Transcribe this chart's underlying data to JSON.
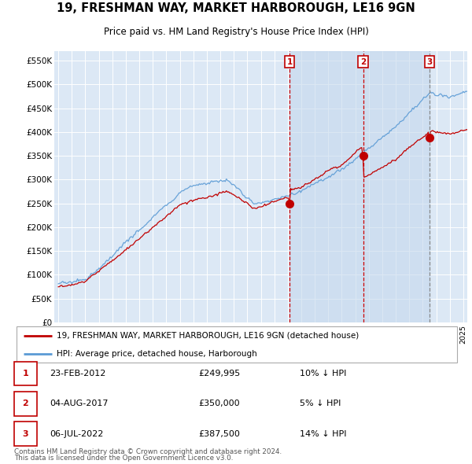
{
  "title": "19, FRESHMAN WAY, MARKET HARBOROUGH, LE16 9GN",
  "subtitle": "Price paid vs. HM Land Registry's House Price Index (HPI)",
  "ylabel_ticks": [
    "£0",
    "£50K",
    "£100K",
    "£150K",
    "£200K",
    "£250K",
    "£300K",
    "£350K",
    "£400K",
    "£450K",
    "£500K",
    "£550K"
  ],
  "ytick_values": [
    0,
    50000,
    100000,
    150000,
    200000,
    250000,
    300000,
    350000,
    400000,
    450000,
    500000,
    550000
  ],
  "ylim": [
    0,
    570000
  ],
  "hpi_color": "#5b9bd5",
  "price_color": "#c00000",
  "sales": [
    {
      "date": "23-FEB-2012",
      "price": 249995,
      "label": "1",
      "pct": "10% ↓ HPI",
      "x": 2012.13,
      "vline_color": "#cc0000",
      "vline_style": "--"
    },
    {
      "date": "04-AUG-2017",
      "price": 350000,
      "label": "2",
      "pct": "5% ↓ HPI",
      "x": 2017.59,
      "vline_color": "#cc0000",
      "vline_style": "--"
    },
    {
      "date": "06-JUL-2022",
      "price": 387500,
      "label": "3",
      "pct": "14% ↓ HPI",
      "x": 2022.51,
      "vline_color": "#888888",
      "vline_style": "--"
    }
  ],
  "shade_x1": 2012.13,
  "shade_x2": 2022.51,
  "legend_line1": "19, FRESHMAN WAY, MARKET HARBOROUGH, LE16 9GN (detached house)",
  "legend_line2": "HPI: Average price, detached house, Harborough",
  "footer1": "Contains HM Land Registry data © Crown copyright and database right 2024.",
  "footer2": "This data is licensed under the Open Government Licence v3.0.",
  "plot_bg": "#dce8f5",
  "shade_color": "#c5d8ed",
  "xlim_left": 1994.7,
  "xlim_right": 2025.3
}
